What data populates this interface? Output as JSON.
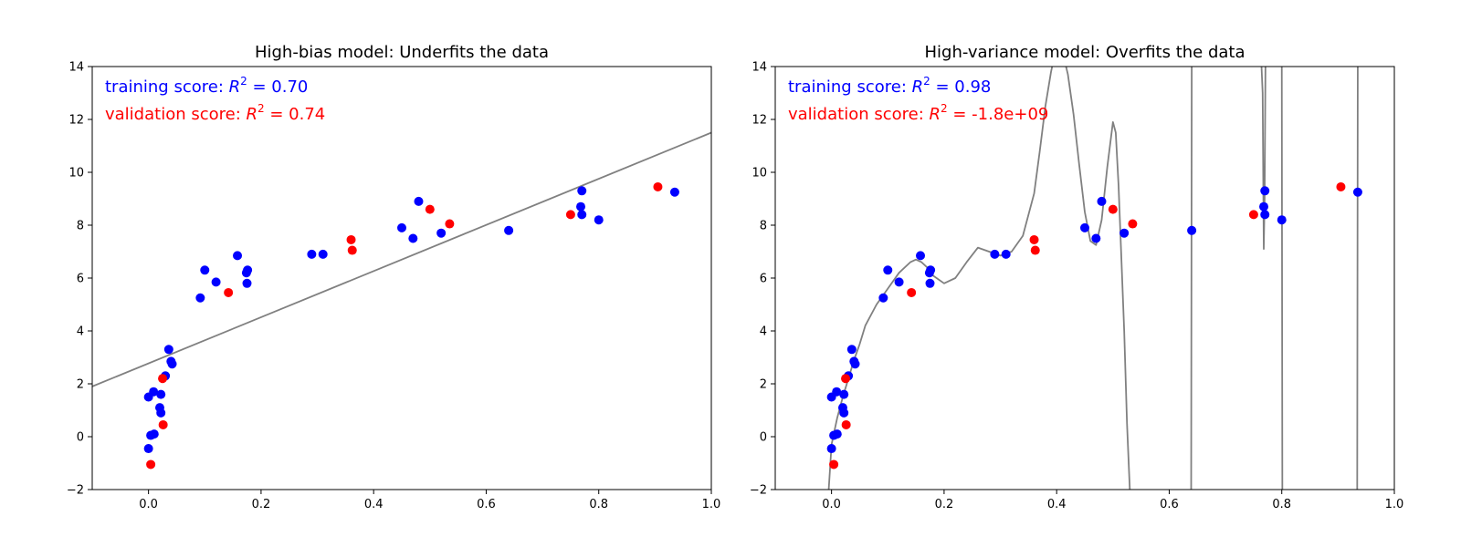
{
  "chart_data": [
    {
      "type": "scatter",
      "title": "High-bias model: Underfits the data",
      "xlim": [
        -0.1,
        1.0
      ],
      "ylim": [
        -2,
        14
      ],
      "xticks": [
        0.0,
        0.2,
        0.4,
        0.6,
        0.8,
        1.0
      ],
      "xtick_labels": [
        "0.0",
        "0.2",
        "0.4",
        "0.6",
        "0.8",
        "1.0"
      ],
      "yticks": [
        -2,
        0,
        2,
        4,
        6,
        8,
        10,
        12,
        14
      ],
      "ytick_labels": [
        "−2",
        "0",
        "2",
        "4",
        "6",
        "8",
        "10",
        "12",
        "14"
      ],
      "annotations": {
        "training": {
          "prefix": "training score: ",
          "symbol": "R",
          "sup": "2",
          "value_text": " = 0.70",
          "color": "#0000ff"
        },
        "validation": {
          "prefix": "validation score: ",
          "symbol": "R",
          "sup": "2",
          "value_text": " = 0.74",
          "color": "#ff0000"
        }
      },
      "fit": {
        "kind": "line",
        "color": "#808080",
        "x": [
          -0.1,
          1.0
        ],
        "y": [
          1.9,
          11.5
        ]
      },
      "series": [
        {
          "name": "training",
          "color": "#0000ff",
          "x": [
            0.0,
            0.004,
            0.01,
            0.0,
            0.009,
            0.02,
            0.022,
            0.022,
            0.03,
            0.036,
            0.04,
            0.042,
            0.092,
            0.1,
            0.12,
            0.158,
            0.174,
            0.176,
            0.175,
            0.29,
            0.31,
            0.45,
            0.47,
            0.48,
            0.52,
            0.64,
            0.77,
            0.768,
            0.77,
            0.8,
            0.935
          ],
          "y": [
            -0.45,
            0.05,
            0.1,
            1.5,
            1.7,
            1.1,
            0.9,
            1.6,
            2.3,
            3.3,
            2.85,
            2.75,
            5.25,
            6.3,
            5.85,
            6.85,
            6.2,
            6.3,
            5.8,
            6.9,
            6.9,
            7.9,
            7.5,
            8.9,
            7.7,
            7.8,
            9.3,
            8.7,
            8.4,
            8.2,
            9.25
          ]
        },
        {
          "name": "validation",
          "color": "#ff0000",
          "x": [
            0.004,
            0.026,
            0.025,
            0.142,
            0.36,
            0.362,
            0.5,
            0.535,
            0.75,
            0.905
          ],
          "y": [
            -1.05,
            0.45,
            2.2,
            5.45,
            7.45,
            7.05,
            8.6,
            8.05,
            8.4,
            9.45
          ]
        }
      ]
    },
    {
      "type": "scatter",
      "title": "High-variance model: Overfits the data",
      "xlim": [
        -0.1,
        1.0
      ],
      "ylim": [
        -2,
        14
      ],
      "xticks": [
        0.0,
        0.2,
        0.4,
        0.6,
        0.8,
        1.0
      ],
      "xtick_labels": [
        "0.0",
        "0.2",
        "0.4",
        "0.6",
        "0.8",
        "1.0"
      ],
      "yticks": [
        -2,
        0,
        2,
        4,
        6,
        8,
        10,
        12,
        14
      ],
      "ytick_labels": [
        "−2",
        "0",
        "2",
        "4",
        "6",
        "8",
        "10",
        "12",
        "14"
      ],
      "annotations": {
        "training": {
          "prefix": "training score: ",
          "symbol": "R",
          "sup": "2",
          "value_text": " = 0.98",
          "color": "#0000ff"
        },
        "validation": {
          "prefix": "validation score: ",
          "symbol": "R",
          "sup": "2",
          "value_text": " = -1.8e+09",
          "color": "#ff0000"
        }
      },
      "fit": {
        "kind": "curve",
        "color": "#808080",
        "segments": [
          {
            "x": [
              -0.005,
              -0.002,
              0.0,
              0.005,
              0.01,
              0.02,
              0.03,
              0.04,
              0.05,
              0.06,
              0.08,
              0.1,
              0.12,
              0.14,
              0.15,
              0.16,
              0.17,
              0.18,
              0.2,
              0.22,
              0.24,
              0.26,
              0.28,
              0.3,
              0.32,
              0.34,
              0.36,
              0.37,
              0.38,
              0.39,
              0.4,
              0.41,
              0.42,
              0.43,
              0.44,
              0.45,
              0.46,
              0.47,
              0.48,
              0.49,
              0.5,
              0.505,
              0.51,
              0.52,
              0.525,
              0.53
            ],
            "y": [
              -2.0,
              -1.0,
              -0.3,
              0.2,
              0.7,
              1.5,
              2.2,
              2.9,
              3.5,
              4.2,
              5.0,
              5.6,
              6.2,
              6.6,
              6.7,
              6.6,
              6.4,
              6.1,
              5.8,
              6.0,
              6.6,
              7.15,
              7.0,
              6.85,
              7.0,
              7.6,
              9.2,
              10.8,
              12.5,
              13.8,
              14.8,
              14.6,
              13.7,
              12.2,
              10.3,
              8.5,
              7.4,
              7.25,
              8.2,
              10.2,
              11.9,
              11.5,
              9.5,
              4.0,
              0.5,
              -2.0
            ]
          },
          {
            "x": [
              0.639,
              0.64,
              0.641
            ],
            "y": [
              -2.0,
              14.0,
              14.0
            ]
          },
          {
            "x": [
              0.764,
              0.766,
              0.768,
              0.7695,
              0.771,
              0.772
            ],
            "y": [
              14.0,
              13.0,
              7.1,
              9.0,
              14.0,
              14.0
            ]
          },
          {
            "x": [
              0.799,
              0.8,
              0.801
            ],
            "y": [
              14.0,
              14.0,
              -2.0
            ]
          },
          {
            "x": [
              0.934,
              0.935,
              0.936
            ],
            "y": [
              -2.0,
              14.0,
              14.0
            ]
          }
        ]
      },
      "series": [
        {
          "name": "training",
          "color": "#0000ff",
          "x": [
            0.0,
            0.004,
            0.01,
            0.0,
            0.009,
            0.02,
            0.022,
            0.022,
            0.03,
            0.036,
            0.04,
            0.042,
            0.092,
            0.1,
            0.12,
            0.158,
            0.174,
            0.176,
            0.175,
            0.29,
            0.31,
            0.45,
            0.47,
            0.48,
            0.52,
            0.64,
            0.77,
            0.768,
            0.77,
            0.8,
            0.935
          ],
          "y": [
            -0.45,
            0.05,
            0.1,
            1.5,
            1.7,
            1.1,
            0.9,
            1.6,
            2.3,
            3.3,
            2.85,
            2.75,
            5.25,
            6.3,
            5.85,
            6.85,
            6.2,
            6.3,
            5.8,
            6.9,
            6.9,
            7.9,
            7.5,
            8.9,
            7.7,
            7.8,
            9.3,
            8.7,
            8.4,
            8.2,
            9.25
          ]
        },
        {
          "name": "validation",
          "color": "#ff0000",
          "x": [
            0.004,
            0.026,
            0.025,
            0.142,
            0.36,
            0.362,
            0.5,
            0.535,
            0.75,
            0.905
          ],
          "y": [
            -1.05,
            0.45,
            2.2,
            5.45,
            7.45,
            7.05,
            8.6,
            8.05,
            8.4,
            9.45
          ]
        }
      ]
    }
  ]
}
